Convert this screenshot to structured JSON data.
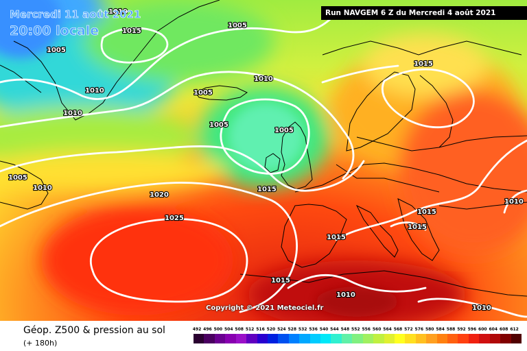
{
  "header": {
    "date_line": "Mercredi 11 août 2021",
    "time_line": "20:00 locale",
    "run_info": "Run NAVGEM 6 Z du Mercredi 4 août 2021",
    "copyright": "Copyright © 2021 Meteociel.fr"
  },
  "footer": {
    "title": "Géop. Z500 & pression au sol",
    "lead": "(+ 180h)"
  },
  "isobar_labels": [
    "1010",
    "1015",
    "1005",
    "1005",
    "1010",
    "1010",
    "1005",
    "1010",
    "1005",
    "1005",
    "1005",
    "1015",
    "1010",
    "1005",
    "1010",
    "1020",
    "1025",
    "1015",
    "1015",
    "1015",
    "1015",
    "1010",
    "1010",
    "1015",
    "1010"
  ],
  "scale": {
    "labels": [
      "492",
      "496",
      "500",
      "504",
      "508",
      "512",
      "516",
      "520",
      "524",
      "528",
      "532",
      "536",
      "540",
      "544",
      "548",
      "552",
      "556",
      "560",
      "564",
      "568",
      "572",
      "576",
      "580",
      "584",
      "588",
      "592",
      "596",
      "600",
      "604",
      "608",
      "612"
    ],
    "colors": [
      "#2a0030",
      "#4a0060",
      "#6a0090",
      "#8800b0",
      "#9a10c8",
      "#6000c0",
      "#2800d0",
      "#0020e0",
      "#0050f0",
      "#0080ff",
      "#00a8ff",
      "#00ccff",
      "#00e8f8",
      "#30f0d0",
      "#60f0a8",
      "#80f080",
      "#a0f060",
      "#c0f040",
      "#e0f030",
      "#ffff20",
      "#ffe020",
      "#ffc020",
      "#ffa020",
      "#ff8010",
      "#ff6010",
      "#ff4010",
      "#f02010",
      "#d01010",
      "#b00808",
      "#800000",
      "#500000"
    ]
  }
}
